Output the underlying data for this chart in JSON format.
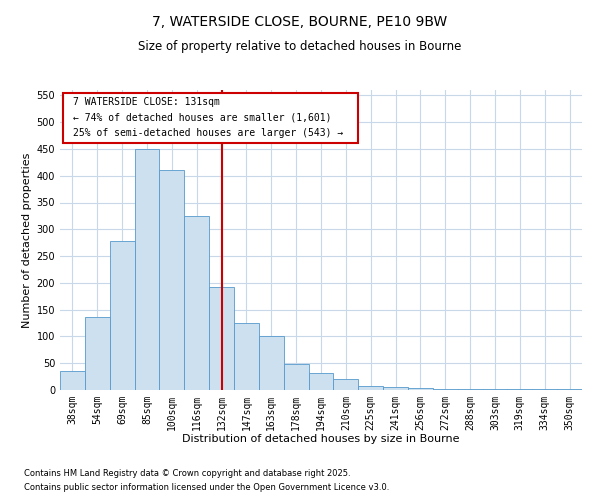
{
  "title": "7, WATERSIDE CLOSE, BOURNE, PE10 9BW",
  "subtitle": "Size of property relative to detached houses in Bourne",
  "xlabel": "Distribution of detached houses by size in Bourne",
  "ylabel": "Number of detached properties",
  "categories": [
    "38sqm",
    "54sqm",
    "69sqm",
    "85sqm",
    "100sqm",
    "116sqm",
    "132sqm",
    "147sqm",
    "163sqm",
    "178sqm",
    "194sqm",
    "210sqm",
    "225sqm",
    "241sqm",
    "256sqm",
    "272sqm",
    "288sqm",
    "303sqm",
    "319sqm",
    "334sqm",
    "350sqm"
  ],
  "values": [
    35,
    137,
    278,
    450,
    410,
    325,
    192,
    125,
    100,
    48,
    32,
    20,
    7,
    5,
    3,
    2,
    1,
    1,
    1,
    1,
    1
  ],
  "bar_color": "#cce0f0",
  "bar_edgecolor": "#5599cc",
  "vline_x": 6,
  "vline_color": "#cc0000",
  "ylim": [
    0,
    560
  ],
  "yticks": [
    0,
    50,
    100,
    150,
    200,
    250,
    300,
    350,
    400,
    450,
    500,
    550
  ],
  "annotation_title": "7 WATERSIDE CLOSE: 131sqm",
  "annotation_line1": "← 74% of detached houses are smaller (1,601)",
  "annotation_line2": "25% of semi-detached houses are larger (543) →",
  "annotation_box_color": "#cc0000",
  "footnote1": "Contains HM Land Registry data © Crown copyright and database right 2025.",
  "footnote2": "Contains public sector information licensed under the Open Government Licence v3.0.",
  "bg_color": "#ffffff",
  "grid_color": "#c8d8e8",
  "title_fontsize": 10,
  "subtitle_fontsize": 8.5,
  "xlabel_fontsize": 8,
  "ylabel_fontsize": 8,
  "tick_fontsize": 7,
  "annot_fontsize": 7,
  "footnote_fontsize": 6
}
